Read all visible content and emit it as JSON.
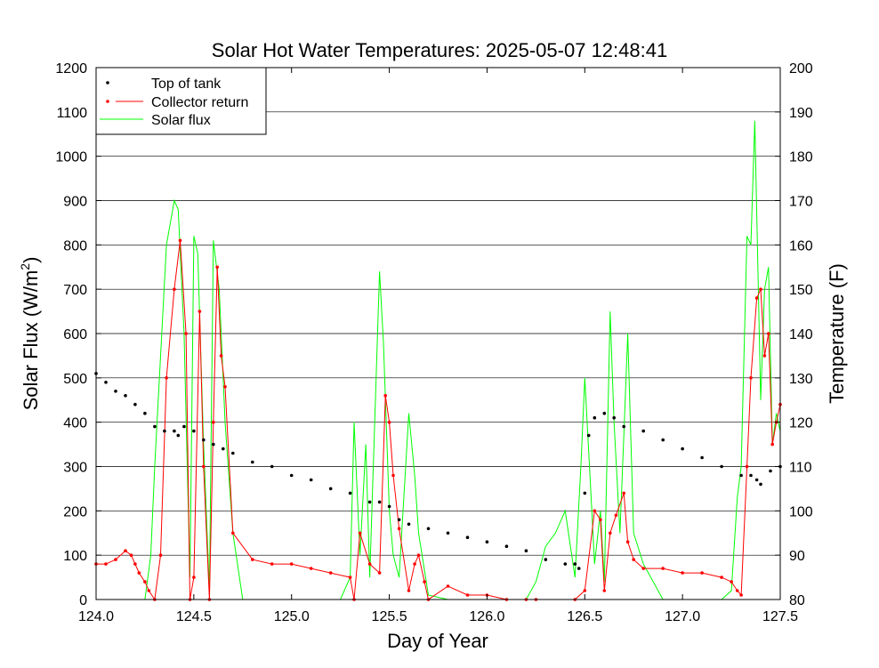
{
  "chart_data": {
    "type": "line",
    "title": "Solar Hot Water Temperatures: 2025-05-07 12:48:41",
    "xlabel": "Day of Year",
    "ylabel_left_main": "Solar Flux (W/m",
    "ylabel_left_sup": "2",
    "ylabel_left_close": ")",
    "ylabel_right": "Temperature (F)",
    "xlim": [
      124.0,
      127.5
    ],
    "ylim_left": [
      0,
      1200
    ],
    "ylim_right": [
      80,
      200
    ],
    "grid": "horizontal",
    "legend_position": "top-left",
    "x_ticks": [
      "124.0",
      "124.5",
      "125.0",
      "125.5",
      "126.0",
      "126.5",
      "127.0",
      "127.5"
    ],
    "y_left_ticks": [
      "0",
      "100",
      "200",
      "300",
      "400",
      "500",
      "600",
      "700",
      "800",
      "900",
      "1000",
      "1100",
      "1200"
    ],
    "y_right_ticks": [
      "80",
      "90",
      "100",
      "110",
      "120",
      "130",
      "140",
      "150",
      "160",
      "170",
      "180",
      "190",
      "200"
    ],
    "colors": {
      "top_of_tank": "#000000",
      "collector_return": "#ff0000",
      "solar_flux": "#00ff00"
    },
    "series": [
      {
        "name": "Top of tank",
        "axis": "right",
        "style": "points",
        "x": [
          124.0,
          124.05,
          124.1,
          124.15,
          124.2,
          124.25,
          124.3,
          124.35,
          124.4,
          124.42,
          124.45,
          124.5,
          124.55,
          124.6,
          124.65,
          124.7,
          124.8,
          124.9,
          125.0,
          125.1,
          125.2,
          125.3,
          125.4,
          125.45,
          125.5,
          125.55,
          125.6,
          125.7,
          125.8,
          125.9,
          126.0,
          126.1,
          126.2,
          126.3,
          126.4,
          126.45,
          126.47,
          126.5,
          126.52,
          126.55,
          126.6,
          126.65,
          126.7,
          126.8,
          126.9,
          127.0,
          127.1,
          127.2,
          127.3,
          127.35,
          127.38,
          127.4,
          127.45,
          127.5
        ],
        "y": [
          131,
          129,
          127,
          126,
          124,
          122,
          119,
          118,
          118,
          117,
          119,
          118,
          116,
          115,
          114,
          113,
          111,
          110,
          108,
          107,
          105,
          104,
          102,
          102,
          101,
          98,
          97,
          96,
          95,
          94,
          93,
          92,
          91,
          89,
          88,
          88,
          87,
          104,
          117,
          121,
          122,
          121,
          119,
          118,
          116,
          114,
          112,
          110,
          108,
          108,
          107,
          106,
          109,
          110
        ]
      },
      {
        "name": "Collector return",
        "axis": "right",
        "style": "line-points",
        "x": [
          124.0,
          124.05,
          124.1,
          124.15,
          124.18,
          124.2,
          124.22,
          124.25,
          124.27,
          124.3,
          124.33,
          124.36,
          124.4,
          124.43,
          124.46,
          124.48,
          124.5,
          124.53,
          124.55,
          124.58,
          124.6,
          124.62,
          124.64,
          124.66,
          124.7,
          124.8,
          124.9,
          125.0,
          125.1,
          125.2,
          125.3,
          125.32,
          125.35,
          125.4,
          125.45,
          125.48,
          125.5,
          125.52,
          125.55,
          125.6,
          125.63,
          125.65,
          125.68,
          125.7,
          125.8,
          125.9,
          126.0,
          126.1,
          126.2,
          126.25,
          126.45,
          126.5,
          126.55,
          126.58,
          126.6,
          126.63,
          126.66,
          126.7,
          126.72,
          126.75,
          126.8,
          126.9,
          127.0,
          127.1,
          127.2,
          127.25,
          127.28,
          127.3,
          127.33,
          127.35,
          127.38,
          127.4,
          127.42,
          127.44,
          127.46,
          127.48,
          127.5
        ],
        "y": [
          88,
          88,
          89,
          91,
          90,
          88,
          86,
          84,
          82,
          80,
          90,
          130,
          150,
          161,
          140,
          80,
          85,
          145,
          110,
          80,
          120,
          155,
          135,
          128,
          95,
          89,
          88,
          88,
          87,
          86,
          85,
          80,
          95,
          88,
          86,
          126,
          120,
          108,
          96,
          82,
          88,
          90,
          84,
          80,
          83,
          81,
          81,
          80,
          80,
          80,
          80,
          82,
          100,
          98,
          82,
          95,
          99,
          104,
          93,
          89,
          87,
          87,
          86,
          86,
          85,
          84,
          82,
          81,
          110,
          130,
          148,
          150,
          135,
          140,
          115,
          120,
          124
        ]
      },
      {
        "name": "Solar flux",
        "axis": "left",
        "style": "line",
        "x": [
          124.0,
          124.1,
          124.2,
          124.25,
          124.28,
          124.3,
          124.33,
          124.36,
          124.4,
          124.42,
          124.45,
          124.48,
          124.5,
          124.52,
          124.55,
          124.58,
          124.6,
          124.63,
          124.66,
          124.7,
          124.75,
          124.8,
          124.9,
          125.0,
          125.1,
          125.2,
          125.25,
          125.3,
          125.32,
          125.35,
          125.38,
          125.4,
          125.45,
          125.47,
          125.5,
          125.52,
          125.55,
          125.6,
          125.63,
          125.65,
          125.7,
          125.8,
          125.9,
          126.0,
          126.1,
          126.2,
          126.25,
          126.3,
          126.35,
          126.4,
          126.45,
          126.48,
          126.5,
          126.53,
          126.55,
          126.58,
          126.6,
          126.63,
          126.65,
          126.68,
          126.7,
          126.72,
          126.75,
          126.8,
          126.9,
          127.0,
          127.1,
          127.2,
          127.25,
          127.28,
          127.3,
          127.33,
          127.35,
          127.37,
          127.4,
          127.42,
          127.44,
          127.46,
          127.48,
          127.5
        ],
        "y": [
          0,
          0,
          0,
          0,
          100,
          300,
          550,
          800,
          900,
          880,
          600,
          50,
          820,
          780,
          350,
          20,
          810,
          700,
          400,
          150,
          0,
          0,
          0,
          0,
          0,
          0,
          0,
          50,
          400,
          100,
          350,
          50,
          740,
          580,
          200,
          100,
          50,
          420,
          280,
          150,
          10,
          0,
          0,
          0,
          0,
          0,
          40,
          120,
          150,
          200,
          50,
          300,
          500,
          250,
          80,
          200,
          40,
          650,
          400,
          150,
          370,
          600,
          150,
          80,
          0,
          0,
          0,
          0,
          20,
          230,
          300,
          820,
          800,
          1080,
          450,
          700,
          750,
          350,
          420,
          380
        ]
      }
    ]
  }
}
